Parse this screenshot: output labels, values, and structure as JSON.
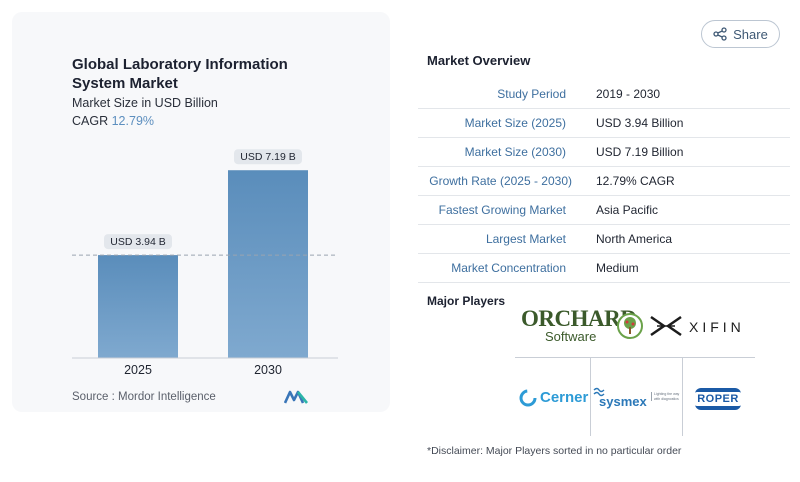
{
  "chart_data": {
    "type": "bar",
    "title": "Global Laboratory Information System Market",
    "subtitle": "Market Size in USD Billion",
    "cagr_label": "CAGR",
    "cagr_value": "12.79%",
    "categories": [
      "2025",
      "2030"
    ],
    "values": [
      3.94,
      7.19
    ],
    "value_labels": [
      "USD 3.94 B",
      "USD 7.19 B"
    ],
    "ylim": [
      0,
      8.5
    ],
    "color": "#5a8dbb",
    "reference_line": 3.94
  },
  "source": "Source :  Mordor Intelligence",
  "share_label": "Share",
  "overview": {
    "heading": "Market Overview",
    "rows": [
      {
        "key": "Study Period",
        "value": "2019 - 2030"
      },
      {
        "key": "Market Size (2025)",
        "value": "USD 3.94 Billion"
      },
      {
        "key": "Market Size (2030)",
        "value": "USD 7.19 Billion"
      },
      {
        "key": "Growth Rate (2025 - 2030)",
        "value": "12.79% CAGR"
      },
      {
        "key": "Fastest Growing Market",
        "value": "Asia Pacific"
      },
      {
        "key": "Largest Market",
        "value": "North America"
      },
      {
        "key": "Market Concentration",
        "value": "Medium"
      }
    ]
  },
  "players": {
    "heading": "Major Players",
    "logos": {
      "orchard": {
        "word": "ORCHARD",
        "sub": "Software"
      },
      "xifin": {
        "word": "XIFIN"
      },
      "cerner": {
        "word": "Cerner"
      },
      "sysmex": {
        "word": "sysmex",
        "tagline": "Lighting the way with diagnostics"
      },
      "roper": {
        "word": "ROPER"
      }
    }
  },
  "disclaimer": "*Disclaimer: Major Players sorted in no particular order",
  "colors": {
    "accent": "#3e6f9f",
    "bar": "#5a8dbb",
    "cagr": "#5d8fbf"
  }
}
